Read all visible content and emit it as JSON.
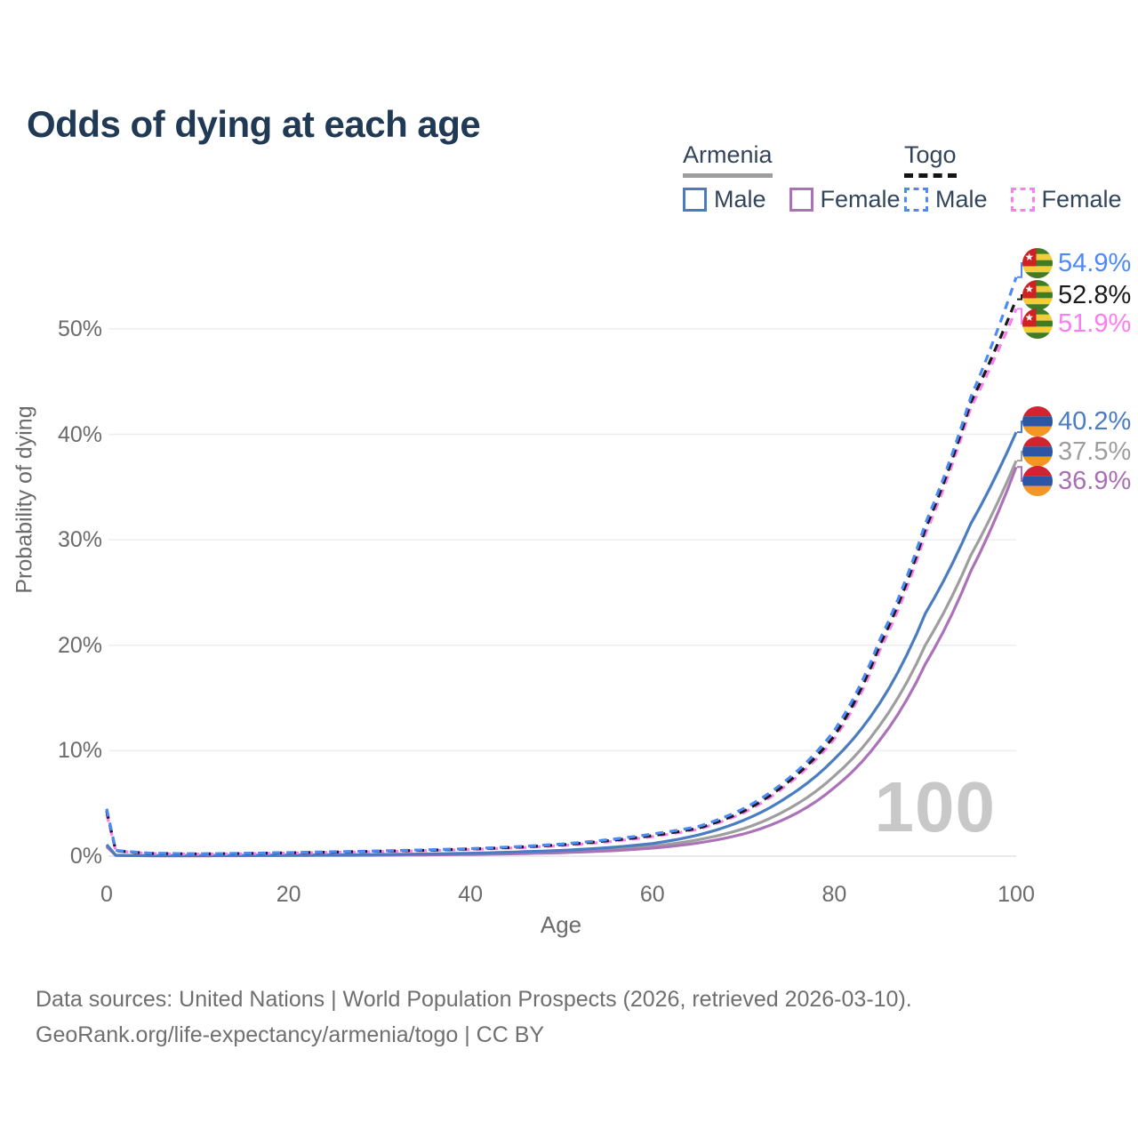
{
  "title": "Odds of dying at each age",
  "legend": {
    "groups": [
      {
        "label": "Armenia",
        "line_style": "solid",
        "underline_color": "#9e9e9e",
        "items": [
          {
            "label": "Male",
            "color": "#4a7cc2"
          },
          {
            "label": "Female",
            "color": "#ab72b8"
          }
        ]
      },
      {
        "label": "Togo",
        "line_style": "dashed",
        "underline_color": "#141414",
        "items": [
          {
            "label": "Male",
            "color": "#4e8af7"
          },
          {
            "label": "Female",
            "color": "#fb7df1"
          }
        ]
      }
    ]
  },
  "end_labels": [
    {
      "series": "togo-male",
      "value": "54.9%",
      "color": "#4e8af7",
      "flag": "togo"
    },
    {
      "series": "togo-both",
      "value": "52.8%",
      "color": "#1a1a1a",
      "flag": "togo"
    },
    {
      "series": "togo-female",
      "value": "51.9%",
      "color": "#fb7df1",
      "flag": "togo"
    },
    {
      "series": "armenia-male",
      "value": "40.2%",
      "color": "#4a7cc2",
      "flag": "armenia"
    },
    {
      "series": "armenia-both",
      "value": "37.5%",
      "color": "#9e9e9e",
      "flag": "armenia"
    },
    {
      "series": "armenia-female",
      "value": "36.9%",
      "color": "#a96fb5",
      "flag": "armenia"
    }
  ],
  "watermark_age": "100",
  "axes": {
    "x": {
      "label": "Age",
      "ticks": [
        "0",
        "20",
        "40",
        "60",
        "80",
        "100"
      ]
    },
    "y": {
      "label": "Probability of dying",
      "ticks": [
        "0%",
        "10%",
        "20%",
        "30%",
        "40%",
        "50%"
      ]
    }
  },
  "flag_colors": {
    "togo_green": "#417b24",
    "togo_yellow": "#f2cf3a",
    "togo_red": "#ce2126",
    "togo_star": "#ffffff",
    "armenia_red": "#d32230",
    "armenia_blue": "#2d55a5",
    "armenia_orange": "#f29724"
  },
  "footer": {
    "line1": "Data sources: United Nations | World Population Prospects (2026, retrieved 2026-03-10).",
    "line2": "GeoRank.org/life-expectancy/armenia/togo | CC BY"
  },
  "chart_data": {
    "type": "line",
    "title": "Odds of dying at each age",
    "xlabel": "Age",
    "ylabel": "Probability of dying",
    "xlim": [
      0,
      100
    ],
    "ylim_pct": [
      0,
      56
    ],
    "x_ticks": [
      0,
      20,
      40,
      60,
      80,
      100
    ],
    "y_ticks_pct": [
      0,
      10,
      20,
      30,
      40,
      50
    ],
    "grid": "horizontal-only",
    "legend_position": "top-right",
    "hovered_age": 100,
    "series": [
      {
        "id": "armenia-both",
        "name": "Armenia — Both sexes",
        "color": "#9e9e9e",
        "dash": false,
        "end_value_pct": 37.5,
        "points": [
          [
            0,
            1.0
          ],
          [
            1,
            0.08
          ],
          [
            5,
            0.04
          ],
          [
            10,
            0.04
          ],
          [
            15,
            0.06
          ],
          [
            20,
            0.08
          ],
          [
            25,
            0.1
          ],
          [
            30,
            0.12
          ],
          [
            35,
            0.16
          ],
          [
            40,
            0.21
          ],
          [
            45,
            0.3
          ],
          [
            50,
            0.42
          ],
          [
            55,
            0.62
          ],
          [
            60,
            0.95
          ],
          [
            65,
            1.55
          ],
          [
            70,
            2.6
          ],
          [
            75,
            4.5
          ],
          [
            80,
            7.6
          ],
          [
            85,
            12.4
          ],
          [
            90,
            20.0
          ],
          [
            95,
            28.5
          ],
          [
            100,
            37.5
          ]
        ]
      },
      {
        "id": "armenia-female",
        "name": "Armenia — Female",
        "color": "#ab72b8",
        "dash": false,
        "end_value_pct": 36.9,
        "points": [
          [
            0,
            0.9
          ],
          [
            1,
            0.07
          ],
          [
            5,
            0.035
          ],
          [
            10,
            0.035
          ],
          [
            15,
            0.045
          ],
          [
            20,
            0.055
          ],
          [
            25,
            0.07
          ],
          [
            30,
            0.09
          ],
          [
            35,
            0.12
          ],
          [
            40,
            0.16
          ],
          [
            45,
            0.23
          ],
          [
            50,
            0.33
          ],
          [
            55,
            0.5
          ],
          [
            60,
            0.76
          ],
          [
            65,
            1.25
          ],
          [
            70,
            2.1
          ],
          [
            75,
            3.7
          ],
          [
            80,
            6.5
          ],
          [
            85,
            11.0
          ],
          [
            90,
            18.2
          ],
          [
            95,
            27.0
          ],
          [
            100,
            36.9
          ]
        ]
      },
      {
        "id": "armenia-male",
        "name": "Armenia — Male",
        "color": "#4a7cc2",
        "dash": false,
        "end_value_pct": 40.2,
        "points": [
          [
            0,
            1.1
          ],
          [
            1,
            0.09
          ],
          [
            5,
            0.05
          ],
          [
            10,
            0.05
          ],
          [
            15,
            0.08
          ],
          [
            20,
            0.11
          ],
          [
            25,
            0.13
          ],
          [
            30,
            0.16
          ],
          [
            35,
            0.21
          ],
          [
            40,
            0.28
          ],
          [
            45,
            0.4
          ],
          [
            50,
            0.55
          ],
          [
            55,
            0.8
          ],
          [
            60,
            1.2
          ],
          [
            65,
            2.0
          ],
          [
            70,
            3.4
          ],
          [
            75,
            5.7
          ],
          [
            80,
            9.2
          ],
          [
            85,
            14.5
          ],
          [
            90,
            23.0
          ],
          [
            95,
            31.5
          ],
          [
            100,
            40.2
          ]
        ]
      },
      {
        "id": "togo-female",
        "name": "Togo — Female",
        "color": "#fb7df1",
        "dash": true,
        "end_value_pct": 51.9,
        "points": [
          [
            0,
            4.0
          ],
          [
            1,
            0.5
          ],
          [
            5,
            0.25
          ],
          [
            10,
            0.2
          ],
          [
            15,
            0.23
          ],
          [
            20,
            0.29
          ],
          [
            25,
            0.36
          ],
          [
            30,
            0.43
          ],
          [
            35,
            0.52
          ],
          [
            40,
            0.63
          ],
          [
            45,
            0.79
          ],
          [
            50,
            1.0
          ],
          [
            55,
            1.35
          ],
          [
            60,
            1.85
          ],
          [
            65,
            2.55
          ],
          [
            70,
            4.1
          ],
          [
            75,
            6.9
          ],
          [
            80,
            11.1
          ],
          [
            85,
            19.5
          ],
          [
            90,
            30.5
          ],
          [
            95,
            42.5
          ],
          [
            100,
            51.9
          ]
        ]
      },
      {
        "id": "togo-both",
        "name": "Togo — Both sexes",
        "color": "#1a1a1a",
        "dash": true,
        "end_value_pct": 52.8,
        "points": [
          [
            0,
            4.3
          ],
          [
            1,
            0.52
          ],
          [
            5,
            0.26
          ],
          [
            10,
            0.21
          ],
          [
            15,
            0.25
          ],
          [
            20,
            0.32
          ],
          [
            25,
            0.39
          ],
          [
            30,
            0.47
          ],
          [
            35,
            0.56
          ],
          [
            40,
            0.68
          ],
          [
            45,
            0.85
          ],
          [
            50,
            1.08
          ],
          [
            55,
            1.45
          ],
          [
            60,
            1.95
          ],
          [
            65,
            2.65
          ],
          [
            70,
            4.25
          ],
          [
            75,
            7.1
          ],
          [
            80,
            11.4
          ],
          [
            85,
            20.0
          ],
          [
            90,
            31.0
          ],
          [
            95,
            43.0
          ],
          [
            100,
            52.8
          ]
        ]
      },
      {
        "id": "togo-male",
        "name": "Togo — Male",
        "color": "#4e8af7",
        "dash": true,
        "end_value_pct": 54.9,
        "points": [
          [
            0,
            4.5
          ],
          [
            1,
            0.55
          ],
          [
            5,
            0.28
          ],
          [
            10,
            0.22
          ],
          [
            15,
            0.27
          ],
          [
            20,
            0.34
          ],
          [
            25,
            0.42
          ],
          [
            30,
            0.5
          ],
          [
            35,
            0.6
          ],
          [
            40,
            0.72
          ],
          [
            45,
            0.9
          ],
          [
            50,
            1.15
          ],
          [
            55,
            1.55
          ],
          [
            60,
            2.1
          ],
          [
            65,
            2.8
          ],
          [
            70,
            4.5
          ],
          [
            75,
            7.4
          ],
          [
            80,
            11.9
          ],
          [
            85,
            20.5
          ],
          [
            90,
            31.5
          ],
          [
            95,
            43.5
          ],
          [
            100,
            54.9
          ]
        ]
      }
    ]
  }
}
